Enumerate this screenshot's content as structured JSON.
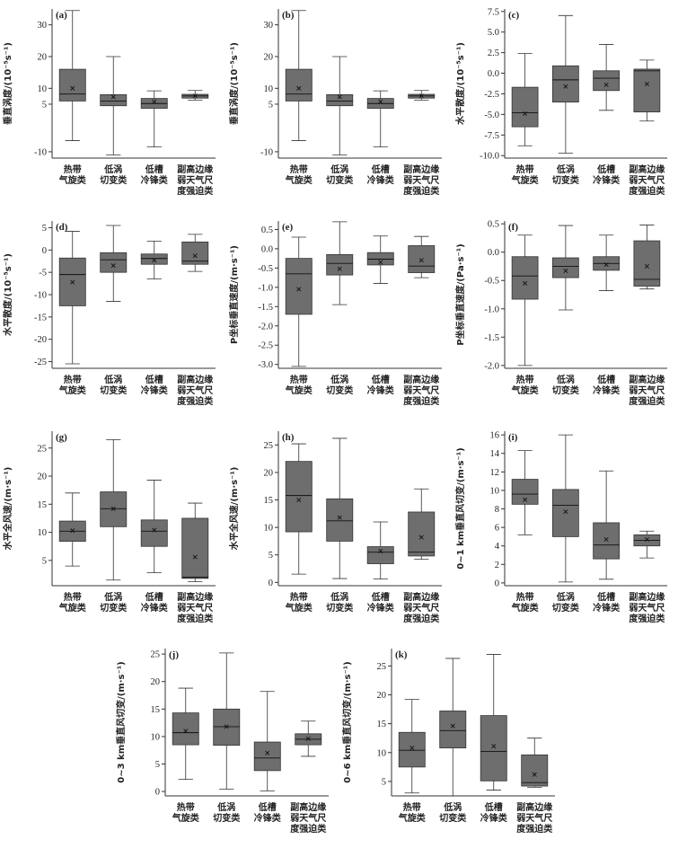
{
  "categories": [
    [
      "热带",
      "气旋类"
    ],
    [
      "低涡",
      "切变类"
    ],
    [
      "低槽",
      "冷锋类"
    ],
    [
      "副高边缘",
      "弱天气尺",
      "度强迫类"
    ]
  ],
  "chart_data": [
    {
      "type": "box",
      "label": "(a)",
      "ylabel": "垂直涡度/(10⁻⁵s⁻¹)",
      "ylim": [
        -12,
        35
      ],
      "ticks": [
        -10,
        5,
        10,
        20,
        30
      ],
      "tick_labels": [
        "-10",
        "5",
        "10",
        "20",
        "30"
      ],
      "boxes": [
        {
          "min": -6.5,
          "q1": 6,
          "median": 8.2,
          "q3": 16,
          "max": 34.5,
          "mean": 10
        },
        {
          "min": -11,
          "q1": 4.5,
          "median": 6,
          "q3": 8,
          "max": 20,
          "mean": 7.3
        },
        {
          "min": -8.5,
          "q1": 3.7,
          "median": 5.2,
          "q3": 6.8,
          "max": 9.2,
          "mean": 5.8
        },
        {
          "min": 6.3,
          "q1": 6.9,
          "median": 7.6,
          "q3": 8.1,
          "max": 9.3,
          "mean": 7.6
        }
      ]
    },
    {
      "type": "box",
      "label": "(b)",
      "ylabel": "垂直涡度/(10⁻⁵s⁻¹)",
      "ylim": [
        -12,
        35
      ],
      "ticks": [
        -10,
        5,
        10,
        20,
        30
      ],
      "tick_labels": [
        "-10",
        "5",
        "10",
        "20",
        "30"
      ],
      "boxes": [
        {
          "min": -6.5,
          "q1": 6,
          "median": 8.2,
          "q3": 16,
          "max": 34.5,
          "mean": 10
        },
        {
          "min": -11,
          "q1": 4.5,
          "median": 6,
          "q3": 8,
          "max": 20,
          "mean": 7.3
        },
        {
          "min": -8.5,
          "q1": 3.7,
          "median": 5.2,
          "q3": 6.8,
          "max": 9.2,
          "mean": 5.8
        },
        {
          "min": 6.3,
          "q1": 6.9,
          "median": 7.6,
          "q3": 8.1,
          "max": 9.3,
          "mean": 7.6
        }
      ]
    },
    {
      "type": "box",
      "label": "(c)",
      "ylabel": "水平散度/(10⁻⁵s⁻¹)",
      "ylim": [
        -10.3,
        7.8
      ],
      "ticks": [
        -10,
        -7.5,
        -5,
        -2.5,
        0,
        2.5,
        5,
        7.5
      ],
      "tick_labels": [
        "-10.0",
        "-7.5",
        "-5.0",
        "-2.5",
        "0.0",
        "2.5",
        "5.0",
        "7.5"
      ],
      "boxes": [
        {
          "min": -8.8,
          "q1": -6.5,
          "median": -4.8,
          "q3": -1.7,
          "max": 2.4,
          "mean": -4.9
        },
        {
          "min": -9.7,
          "q1": -3.5,
          "median": -0.8,
          "q3": 0.9,
          "max": 7.0,
          "mean": -1.6
        },
        {
          "min": -4.5,
          "q1": -2.1,
          "median": -0.6,
          "q3": 0.3,
          "max": 3.5,
          "mean": -1.4
        },
        {
          "min": -5.8,
          "q1": -4.7,
          "median": 0.3,
          "q3": 0.5,
          "max": 1.6,
          "mean": -1.3
        }
      ]
    },
    {
      "type": "box",
      "label": "(d)",
      "ylabel": "水平散度/(10⁻⁵s⁻¹)",
      "ylim": [
        -26.5,
        6.5
      ],
      "ticks": [
        -25,
        -20,
        -15,
        -10,
        -5,
        0,
        5
      ],
      "tick_labels": [
        "-25",
        "-20",
        "-15",
        "-10",
        "-5",
        "0",
        "5"
      ],
      "boxes": [
        {
          "min": -25.5,
          "q1": -12.5,
          "median": -5.5,
          "q3": -1.8,
          "max": 4.2,
          "mean": -7.2
        },
        {
          "min": -11.5,
          "q1": -5,
          "median": -2.2,
          "q3": -0.6,
          "max": 5.5,
          "mean": -3.5
        },
        {
          "min": -6.5,
          "q1": -3.2,
          "median": -1.9,
          "q3": -0.9,
          "max": 2.0,
          "mean": -2.3
        },
        {
          "min": -4.8,
          "q1": -3.2,
          "median": -2.5,
          "q3": 1.8,
          "max": 3.5,
          "mean": -1.3
        }
      ]
    },
    {
      "type": "box",
      "label": "(e)",
      "ylabel": "P坐标垂直速度/(m·s⁻¹)",
      "ylim": [
        -3.1,
        0.72
      ],
      "ticks": [
        -3,
        -2.5,
        -2,
        -1.5,
        -1,
        -0.5,
        0,
        0.5
      ],
      "tick_labels": [
        "-3.0",
        "-2.5",
        "-2.0",
        "-1.5",
        "-1.0",
        "-0.5",
        "0.0",
        "0.5"
      ],
      "boxes": [
        {
          "min": -3.05,
          "q1": -1.7,
          "median": -0.65,
          "q3": -0.25,
          "max": 0.3,
          "mean": -1.05
        },
        {
          "min": -1.45,
          "q1": -0.68,
          "median": -0.38,
          "q3": -0.15,
          "max": 0.7,
          "mean": -0.52
        },
        {
          "min": -0.9,
          "q1": -0.42,
          "median": -0.27,
          "q3": -0.1,
          "max": 0.33,
          "mean": -0.35
        },
        {
          "min": -0.75,
          "q1": -0.62,
          "median": -0.45,
          "q3": 0.08,
          "max": 0.32,
          "mean": -0.3
        }
      ]
    },
    {
      "type": "box",
      "label": "(f)",
      "ylabel": "P坐标垂直速度/(Pa·s⁻¹)",
      "ylim": [
        -2.05,
        0.55
      ],
      "ticks": [
        -2,
        -1.5,
        -1,
        -0.5,
        0,
        0.5
      ],
      "tick_labels": [
        "-2.0",
        "-1.5",
        "-1.0",
        "-0.5",
        "0.0",
        "0.5"
      ],
      "boxes": [
        {
          "min": -2.0,
          "q1": -0.83,
          "median": -0.42,
          "q3": -0.08,
          "max": 0.3,
          "mean": -0.55
        },
        {
          "min": -1.02,
          "q1": -0.45,
          "median": -0.25,
          "q3": -0.1,
          "max": 0.47,
          "mean": -0.33
        },
        {
          "min": -0.68,
          "q1": -0.32,
          "median": -0.2,
          "q3": -0.08,
          "max": 0.3,
          "mean": -0.22
        },
        {
          "min": -0.65,
          "q1": -0.6,
          "median": -0.48,
          "q3": 0.2,
          "max": 0.48,
          "mean": -0.25
        }
      ]
    },
    {
      "type": "box",
      "label": "(g)",
      "ylabel": "水平全风速/(m·s⁻¹)",
      "ylim": [
        0.5,
        28
      ],
      "ticks": [
        5,
        10,
        15,
        20,
        25
      ],
      "tick_labels": [
        "5",
        "10",
        "15",
        "20",
        "25"
      ],
      "boxes": [
        {
          "min": 4.0,
          "q1": 8.4,
          "median": 10.2,
          "q3": 12.0,
          "max": 17.0,
          "mean": 10.3
        },
        {
          "min": 1.5,
          "q1": 11.0,
          "median": 14.2,
          "q3": 17.2,
          "max": 26.5,
          "mean": 14.2
        },
        {
          "min": 2.8,
          "q1": 7.5,
          "median": 10.2,
          "q3": 12.2,
          "max": 19.3,
          "mean": 10.4
        },
        {
          "min": 1.2,
          "q1": 1.8,
          "median": 2.0,
          "q3": 12.5,
          "max": 15.2,
          "mean": 5.6
        }
      ]
    },
    {
      "type": "box",
      "label": "(h)",
      "ylabel": "水平全风速/(m·s⁻¹)",
      "ylim": [
        -0.6,
        27.5
      ],
      "ticks": [
        0,
        5,
        10,
        15,
        20,
        25
      ],
      "tick_labels": [
        "0",
        "5",
        "10",
        "15",
        "20",
        "25"
      ],
      "boxes": [
        {
          "min": 1.5,
          "q1": 9.2,
          "median": 15.8,
          "q3": 22.0,
          "max": 25.2,
          "mean": 15.0
        },
        {
          "min": 0.7,
          "q1": 7.5,
          "median": 11.2,
          "q3": 15.2,
          "max": 26.2,
          "mean": 11.8
        },
        {
          "min": 0.6,
          "q1": 3.4,
          "median": 5.5,
          "q3": 6.5,
          "max": 11.0,
          "mean": 5.7
        },
        {
          "min": 4.2,
          "q1": 4.8,
          "median": 5.5,
          "q3": 12.8,
          "max": 17.0,
          "mean": 8.2
        }
      ]
    },
    {
      "type": "box",
      "label": "(i)",
      "ylabel": "0~1 km垂直风切变/(m·s⁻¹)",
      "ylim": [
        -0.3,
        16.4
      ],
      "ticks": [
        0,
        2,
        4,
        6,
        8,
        10,
        12,
        14,
        16
      ],
      "tick_labels": [
        "0",
        "2",
        "4",
        "6",
        "8",
        "10",
        "12",
        "14",
        "16"
      ],
      "boxes": [
        {
          "min": 5.2,
          "q1": 8.5,
          "median": 9.6,
          "q3": 11.2,
          "max": 14.3,
          "mean": 9.0
        },
        {
          "min": 0.1,
          "q1": 5.0,
          "median": 8.4,
          "q3": 10.1,
          "max": 16.0,
          "mean": 7.7
        },
        {
          "min": 0.4,
          "q1": 2.6,
          "median": 4.1,
          "q3": 6.5,
          "max": 12.1,
          "mean": 4.7
        },
        {
          "min": 2.7,
          "q1": 4.0,
          "median": 4.6,
          "q3": 5.2,
          "max": 5.6,
          "mean": 4.7
        }
      ]
    },
    {
      "type": "box",
      "label": "(j)",
      "ylabel": "0~3 km垂直风切变/(m·s⁻¹)",
      "ylim": [
        -0.8,
        26
      ],
      "ticks": [
        0,
        5,
        10,
        15,
        20,
        25
      ],
      "tick_labels": [
        "0",
        "5",
        "10",
        "15",
        "20",
        "25"
      ],
      "boxes": [
        {
          "min": 2.2,
          "q1": 8.5,
          "median": 10.7,
          "q3": 14.3,
          "max": 18.8,
          "mean": 11.0
        },
        {
          "min": 0.4,
          "q1": 8.4,
          "median": 11.8,
          "q3": 15.0,
          "max": 25.2,
          "mean": 11.8
        },
        {
          "min": 0.1,
          "q1": 3.8,
          "median": 6.1,
          "q3": 9.0,
          "max": 18.2,
          "mean": 7.0
        },
        {
          "min": 6.4,
          "q1": 8.5,
          "median": 9.5,
          "q3": 10.5,
          "max": 12.8,
          "mean": 9.6
        }
      ]
    },
    {
      "type": "box",
      "label": "(k)",
      "ylabel": "0~6 km垂直风切变/(m·s⁻¹)",
      "ylim": [
        2.5,
        28
      ],
      "ticks": [
        5,
        10,
        15,
        20,
        25
      ],
      "tick_labels": [
        "5",
        "10",
        "15",
        "20",
        "25"
      ],
      "boxes": [
        {
          "min": 3.0,
          "q1": 7.5,
          "median": 10.4,
          "q3": 13.5,
          "max": 19.2,
          "mean": 10.8
        },
        {
          "min": 2.5,
          "q1": 10.8,
          "median": 13.8,
          "q3": 17.2,
          "max": 26.3,
          "mean": 14.6
        },
        {
          "min": 3.5,
          "q1": 5.1,
          "median": 10.2,
          "q3": 16.4,
          "max": 27.0,
          "mean": 11.1
        },
        {
          "min": 4.0,
          "q1": 4.2,
          "median": 4.8,
          "q3": 9.6,
          "max": 12.5,
          "mean": 6.2
        }
      ]
    }
  ]
}
